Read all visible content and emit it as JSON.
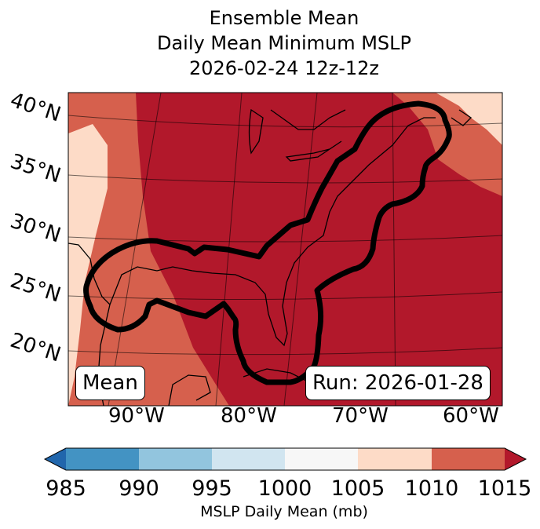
{
  "title": {
    "line1": "Ensemble Mean",
    "line2": "Daily Mean Minimum MSLP",
    "line3": "2026-02-24 12z-12z"
  },
  "lat_labels": [
    "40°N",
    "35°N",
    "30°N",
    "25°N",
    "20°N"
  ],
  "lon_labels": [
    "90°W",
    "80°W",
    "70°W",
    "60°W"
  ],
  "legend_box": "Mean",
  "run_box": "Run: 2026-01-28",
  "colorbar": {
    "label": "MSLP Daily Mean (mb)",
    "ticks": [
      "985",
      "990",
      "995",
      "1000",
      "1005",
      "1010",
      "1015"
    ],
    "colors": [
      "#4393c3",
      "#92c5de",
      "#d1e5f0",
      "#f7f7f7",
      "#fddbc7",
      "#d6604d"
    ],
    "extend_low": "#2166ac",
    "extend_high": "#b2182b"
  }
}
